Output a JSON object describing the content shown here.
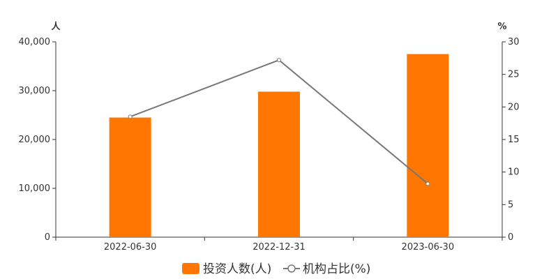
{
  "chart_data": {
    "type": "bar",
    "categories": [
      "2022-06-30",
      "2022-12-31",
      "2023-06-30"
    ],
    "series": [
      {
        "name": "投资人数(人)",
        "type": "bar",
        "axis": "left",
        "color": "#ff7700",
        "values": [
          24500,
          29800,
          37500
        ]
      },
      {
        "name": "机构占比(%)",
        "type": "line",
        "axis": "right",
        "color": "#777777",
        "values": [
          18.5,
          27.2,
          8.2
        ]
      }
    ],
    "left_axis": {
      "unit": "人",
      "ylim": [
        0,
        40000
      ],
      "ticks": [
        0,
        10000,
        20000,
        30000,
        40000
      ],
      "tick_labels": [
        "0",
        "10,000",
        "20,000",
        "30,000",
        "40,000"
      ]
    },
    "right_axis": {
      "unit": "%",
      "ylim": [
        0,
        30
      ],
      "ticks": [
        0,
        5,
        10,
        15,
        20,
        25,
        30
      ],
      "tick_labels": [
        "0",
        "5",
        "10",
        "15",
        "20",
        "25",
        "30"
      ]
    },
    "grid": false,
    "legend_position": "bottom-center"
  }
}
